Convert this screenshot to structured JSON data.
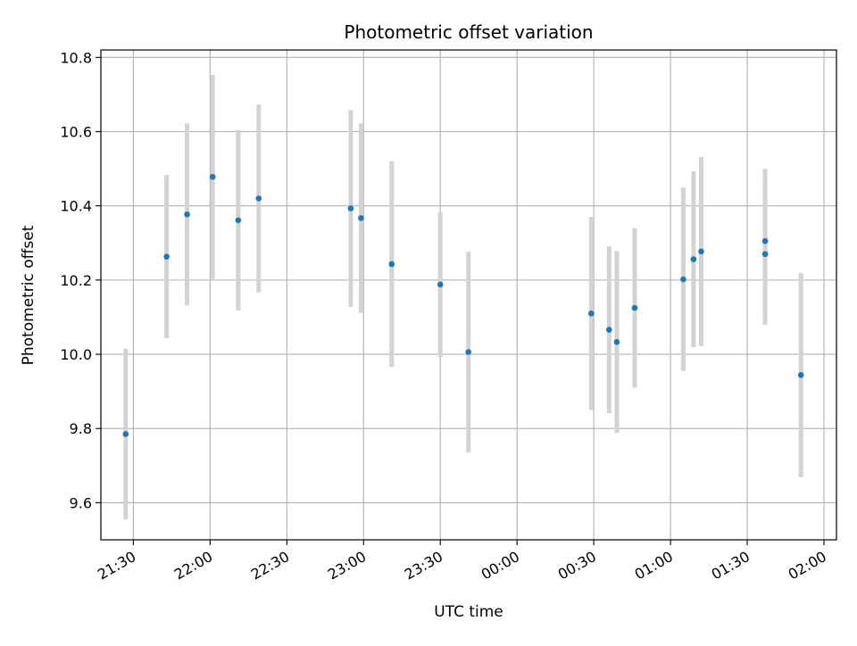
{
  "chart_data": {
    "type": "scatter",
    "title": "Photometric offset variation",
    "xlabel": "UTC time",
    "ylabel": "Photometric offset",
    "x_axis_type": "datetime",
    "xlim": [
      "2000-01-01 21:18",
      "2000-01-02 02:00"
    ],
    "ylim": [
      9.5,
      10.82
    ],
    "xticks": [
      {
        "label": "21:30",
        "value": "2000-01-01 21:30"
      },
      {
        "label": "22:00",
        "value": "2000-01-01 22:00"
      },
      {
        "label": "22:30",
        "value": "2000-01-01 22:30"
      },
      {
        "label": "23:00",
        "value": "2000-01-01 23:00"
      },
      {
        "label": "23:30",
        "value": "2000-01-01 23:30"
      },
      {
        "label": "00:00",
        "value": "2000-01-02 00:00"
      },
      {
        "label": "00:30",
        "value": "2000-01-02 00:30"
      },
      {
        "label": "01:00",
        "value": "2000-01-02 01:00"
      },
      {
        "label": "01:30",
        "value": "2000-01-02 01:30"
      },
      {
        "label": "02:00",
        "value": "2000-01-02 02:00"
      }
    ],
    "yticks": [
      {
        "label": "9.6",
        "value": 9.6
      },
      {
        "label": "9.8",
        "value": 9.8
      },
      {
        "label": "10.0",
        "value": 10.0
      },
      {
        "label": "10.2",
        "value": 10.2
      },
      {
        "label": "10.4",
        "value": 10.4
      },
      {
        "label": "10.6",
        "value": 10.6
      },
      {
        "label": "10.8",
        "value": 10.8
      }
    ],
    "grid": true,
    "colors": {
      "point": "#1f77b4",
      "errorbar": "#d3d3d3",
      "grid": "#b0b0b0"
    },
    "points": [
      {
        "t": "2000-01-01 21:27",
        "y": 9.785,
        "err": 0.23
      },
      {
        "t": "2000-01-01 21:43",
        "y": 10.263,
        "err": 0.22
      },
      {
        "t": "2000-01-01 21:51",
        "y": 10.377,
        "err": 0.245
      },
      {
        "t": "2000-01-01 22:01",
        "y": 10.478,
        "err": 0.275
      },
      {
        "t": "2000-01-01 22:11",
        "y": 10.361,
        "err": 0.243
      },
      {
        "t": "2000-01-01 22:19",
        "y": 10.42,
        "err": 0.253
      },
      {
        "t": "2000-01-01 22:55",
        "y": 10.393,
        "err": 0.265
      },
      {
        "t": "2000-01-01 22:59",
        "y": 10.367,
        "err": 0.255
      },
      {
        "t": "2000-01-01 23:11",
        "y": 10.243,
        "err": 0.277
      },
      {
        "t": "2000-01-01 23:30",
        "y": 10.188,
        "err": 0.195
      },
      {
        "t": "2000-01-01 23:41",
        "y": 10.006,
        "err": 0.27
      },
      {
        "t": "2000-01-02 00:29",
        "y": 10.11,
        "err": 0.26
      },
      {
        "t": "2000-01-02 00:36",
        "y": 10.066,
        "err": 0.225
      },
      {
        "t": "2000-01-02 00:39",
        "y": 10.033,
        "err": 0.245
      },
      {
        "t": "2000-01-02 00:46",
        "y": 10.125,
        "err": 0.215
      },
      {
        "t": "2000-01-02 01:05",
        "y": 10.202,
        "err": 0.247
      },
      {
        "t": "2000-01-02 01:09",
        "y": 10.256,
        "err": 0.237
      },
      {
        "t": "2000-01-02 01:12",
        "y": 10.277,
        "err": 0.255
      },
      {
        "t": "2000-01-02 01:37",
        "y": 10.27,
        "err": 0.19
      },
      {
        "t": "2000-01-02 01:37",
        "y": 10.305,
        "err": 0.195
      },
      {
        "t": "2000-01-02 01:51",
        "y": 9.944,
        "err": 0.275
      }
    ]
  }
}
